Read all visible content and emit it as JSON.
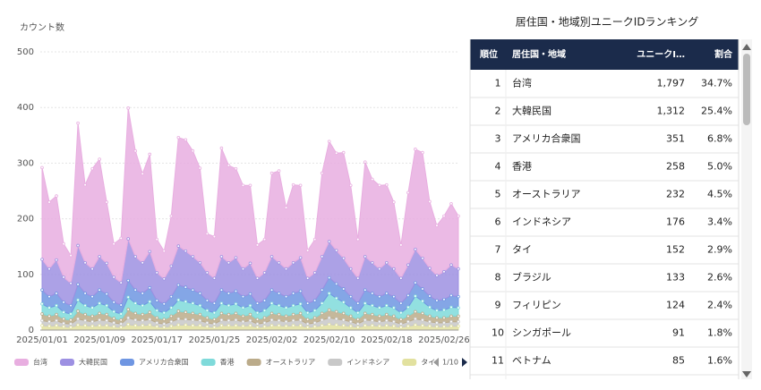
{
  "chart_data": {
    "type": "stacked-area",
    "y_label": "カウント数",
    "ylim": [
      0,
      500
    ],
    "yticks": [
      0,
      100,
      200,
      300,
      400,
      500
    ],
    "grid": true,
    "categories": [
      "2025/01/01",
      null,
      null,
      null,
      null,
      null,
      null,
      null,
      "2025/01/09",
      null,
      null,
      null,
      null,
      null,
      null,
      null,
      "2025/01/17",
      null,
      null,
      null,
      null,
      null,
      null,
      null,
      "2025/01/25",
      null,
      null,
      null,
      null,
      null,
      null,
      null,
      "2025/02/02",
      null,
      null,
      null,
      null,
      null,
      null,
      null,
      "2025/02/10",
      null,
      null,
      null,
      null,
      null,
      null,
      null,
      "2025/02/18",
      null,
      null,
      null,
      null,
      null,
      null,
      null,
      "2025/02/26",
      null,
      null
    ],
    "series": [
      {
        "name": "台湾",
        "color": "#e8aee0",
        "values": [
          165,
          120,
          115,
          60,
          50,
          220,
          140,
          180,
          175,
          110,
          60,
          80,
          235,
          190,
          160,
          175,
          60,
          50,
          90,
          195,
          200,
          190,
          170,
          70,
          75,
          195,
          175,
          160,
          150,
          140,
          60,
          60,
          150,
          165,
          110,
          140,
          130,
          50,
          60,
          150,
          180,
          175,
          190,
          150,
          70,
          170,
          150,
          150,
          140,
          120,
          60,
          130,
          180,
          190,
          120,
          90,
          100,
          110,
          95
        ]
      },
      {
        "name": "大韓民国",
        "color": "#9d90e2",
        "values": [
          55,
          50,
          60,
          45,
          40,
          70,
          55,
          50,
          60,
          55,
          45,
          40,
          75,
          60,
          55,
          65,
          50,
          45,
          55,
          70,
          65,
          60,
          55,
          50,
          45,
          60,
          55,
          60,
          50,
          55,
          45,
          50,
          60,
          55,
          50,
          55,
          60,
          45,
          50,
          60,
          65,
          60,
          55,
          50,
          45,
          60,
          55,
          50,
          55,
          50,
          45,
          55,
          60,
          55,
          50,
          45,
          50,
          55,
          50
        ]
      },
      {
        "name": "アメリカ合衆国",
        "color": "#6f96e2",
        "values": [
          25,
          20,
          22,
          18,
          15,
          28,
          22,
          20,
          24,
          21,
          17,
          16,
          30,
          24,
          22,
          25,
          18,
          16,
          20,
          27,
          26,
          24,
          22,
          18,
          17,
          24,
          22,
          23,
          20,
          21,
          17,
          18,
          24,
          22,
          20,
          22,
          23,
          17,
          18,
          24,
          28,
          26,
          24,
          20,
          17,
          24,
          22,
          20,
          22,
          20,
          17,
          21,
          24,
          22,
          20,
          18,
          19,
          21,
          20
        ]
      },
      {
        "name": "香港",
        "color": "#7fdada",
        "values": [
          18,
          15,
          16,
          12,
          11,
          20,
          16,
          15,
          18,
          16,
          12,
          11,
          22,
          18,
          16,
          19,
          13,
          12,
          15,
          20,
          19,
          18,
          16,
          13,
          12,
          18,
          16,
          17,
          15,
          16,
          12,
          13,
          18,
          16,
          15,
          16,
          17,
          12,
          13,
          18,
          30,
          24,
          20,
          15,
          12,
          18,
          16,
          15,
          16,
          15,
          12,
          16,
          28,
          22,
          16,
          13,
          14,
          16,
          15
        ]
      },
      {
        "name": "オーストラリア",
        "color": "#bbab8a",
        "values": [
          12,
          10,
          11,
          8,
          7,
          14,
          11,
          10,
          12,
          11,
          8,
          7,
          15,
          12,
          11,
          13,
          9,
          8,
          10,
          14,
          13,
          12,
          11,
          9,
          8,
          12,
          11,
          12,
          10,
          11,
          8,
          9,
          12,
          11,
          10,
          11,
          12,
          8,
          9,
          12,
          14,
          13,
          12,
          10,
          8,
          12,
          11,
          10,
          11,
          10,
          8,
          10,
          13,
          12,
          10,
          9,
          9,
          10,
          10
        ]
      },
      {
        "name": "インドネシア",
        "color": "#c8c8c8",
        "values": [
          9,
          8,
          9,
          6,
          6,
          11,
          9,
          8,
          10,
          9,
          7,
          6,
          12,
          10,
          9,
          10,
          7,
          6,
          8,
          11,
          10,
          10,
          9,
          7,
          6,
          10,
          9,
          10,
          8,
          9,
          6,
          7,
          10,
          9,
          8,
          9,
          10,
          6,
          7,
          10,
          12,
          11,
          10,
          8,
          6,
          10,
          9,
          8,
          9,
          8,
          6,
          8,
          11,
          10,
          8,
          7,
          7,
          8,
          8
        ]
      },
      {
        "name": "タイ",
        "color": "#e2e19f",
        "values": [
          8,
          7,
          8,
          6,
          5,
          9,
          8,
          7,
          8,
          8,
          6,
          5,
          10,
          8,
          8,
          9,
          6,
          5,
          7,
          9,
          9,
          8,
          8,
          6,
          5,
          8,
          8,
          8,
          7,
          8,
          5,
          6,
          8,
          8,
          7,
          8,
          8,
          5,
          6,
          8,
          10,
          9,
          8,
          7,
          5,
          8,
          8,
          7,
          8,
          7,
          5,
          7,
          9,
          8,
          7,
          6,
          6,
          7,
          7
        ]
      }
    ],
    "legend_page": "1/10"
  },
  "table": {
    "title": "居住国・地域別ユニークIDランキング",
    "columns": [
      "順位",
      "居住国・地域",
      "ユニークI…",
      "割合"
    ],
    "rows": [
      [
        "1",
        "台湾",
        "1,797",
        "34.7%"
      ],
      [
        "2",
        "大韓民国",
        "1,312",
        "25.4%"
      ],
      [
        "3",
        "アメリカ合衆国",
        "351",
        "6.8%"
      ],
      [
        "4",
        "香港",
        "258",
        "5.0%"
      ],
      [
        "5",
        "オーストラリア",
        "232",
        "4.5%"
      ],
      [
        "6",
        "インドネシア",
        "176",
        "3.4%"
      ],
      [
        "7",
        "タイ",
        "152",
        "2.9%"
      ],
      [
        "8",
        "ブラジル",
        "133",
        "2.6%"
      ],
      [
        "9",
        "フィリピン",
        "124",
        "2.4%"
      ],
      [
        "10",
        "シンガポール",
        "91",
        "1.8%"
      ],
      [
        "11",
        "ベトナム",
        "85",
        "1.6%"
      ]
    ]
  }
}
